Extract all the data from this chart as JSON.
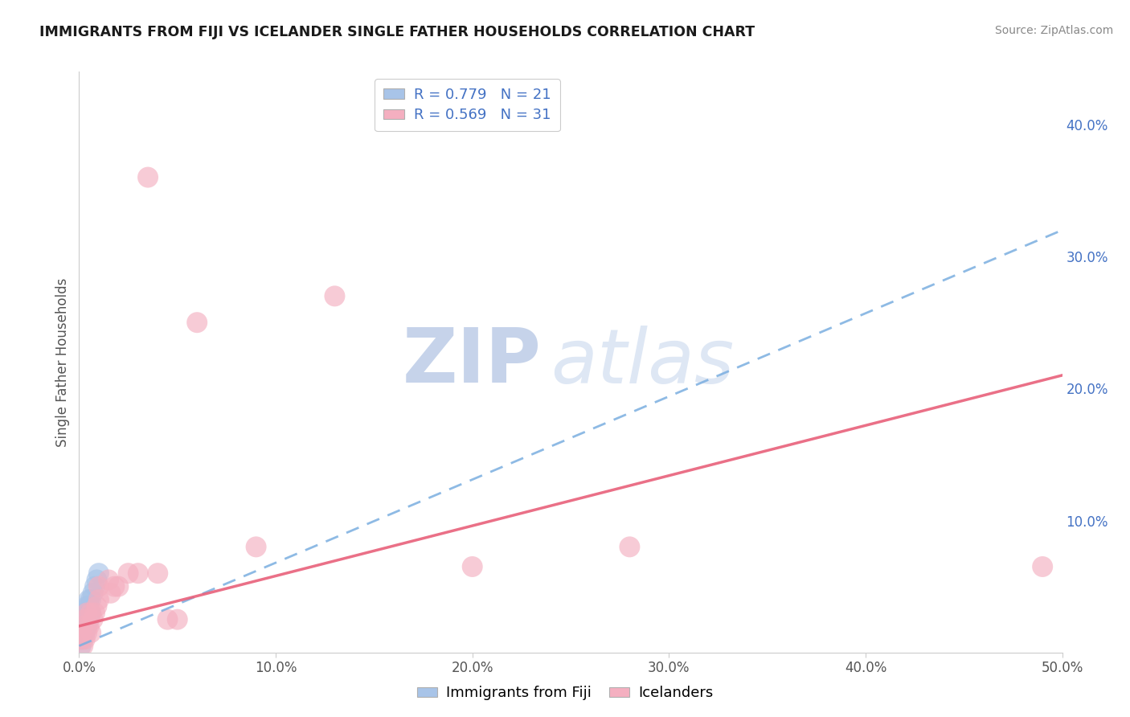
{
  "title": "IMMIGRANTS FROM FIJI VS ICELANDER SINGLE FATHER HOUSEHOLDS CORRELATION CHART",
  "source": "Source: ZipAtlas.com",
  "ylabel": "Single Father Households",
  "xlim": [
    0.0,
    0.5
  ],
  "ylim": [
    0.0,
    0.44
  ],
  "xticks": [
    0.0,
    0.1,
    0.2,
    0.3,
    0.4,
    0.5
  ],
  "xtick_labels": [
    "0.0%",
    "10.0%",
    "20.0%",
    "30.0%",
    "40.0%",
    "50.0%"
  ],
  "yticks_right": [
    0.1,
    0.2,
    0.3,
    0.4
  ],
  "ytick_right_labels": [
    "10.0%",
    "20.0%",
    "30.0%",
    "40.0%"
  ],
  "fiji_color": "#a8c4e8",
  "fiji_line_color": "#7aaee0",
  "iceland_color": "#f4afc0",
  "iceland_line_color": "#e8607a",
  "R_fiji": "0.779",
  "N_fiji": "21",
  "R_iceland": "0.569",
  "N_iceland": "31",
  "fiji_x": [
    0.001,
    0.001,
    0.001,
    0.002,
    0.002,
    0.002,
    0.003,
    0.003,
    0.003,
    0.004,
    0.004,
    0.004,
    0.005,
    0.005,
    0.005,
    0.006,
    0.006,
    0.007,
    0.008,
    0.009,
    0.01
  ],
  "fiji_y": [
    0.005,
    0.01,
    0.015,
    0.01,
    0.02,
    0.025,
    0.015,
    0.025,
    0.03,
    0.02,
    0.03,
    0.035,
    0.025,
    0.035,
    0.04,
    0.03,
    0.04,
    0.045,
    0.05,
    0.055,
    0.06
  ],
  "fiji_trend_x": [
    0.0,
    0.5
  ],
  "fiji_trend_y": [
    0.005,
    0.32
  ],
  "iceland_x": [
    0.001,
    0.002,
    0.002,
    0.003,
    0.003,
    0.004,
    0.004,
    0.005,
    0.006,
    0.006,
    0.007,
    0.008,
    0.009,
    0.01,
    0.01,
    0.015,
    0.016,
    0.018,
    0.02,
    0.025,
    0.03,
    0.035,
    0.04,
    0.045,
    0.05,
    0.06,
    0.09,
    0.13,
    0.2,
    0.28,
    0.49
  ],
  "iceland_y": [
    0.01,
    0.005,
    0.02,
    0.01,
    0.025,
    0.015,
    0.03,
    0.02,
    0.015,
    0.03,
    0.025,
    0.03,
    0.035,
    0.04,
    0.05,
    0.055,
    0.045,
    0.05,
    0.05,
    0.06,
    0.06,
    0.36,
    0.06,
    0.025,
    0.025,
    0.25,
    0.08,
    0.27,
    0.065,
    0.08,
    0.065
  ],
  "iceland_trend_x": [
    0.0,
    0.5
  ],
  "iceland_trend_y": [
    0.02,
    0.21
  ],
  "watermark_zip": "ZIP",
  "watermark_atlas": "atlas",
  "watermark_color": "#c8d8f0",
  "background_color": "#ffffff",
  "grid_color": "#cccccc",
  "title_color": "#1a1a1a",
  "right_axis_color": "#4472c4",
  "source_color": "#888888"
}
